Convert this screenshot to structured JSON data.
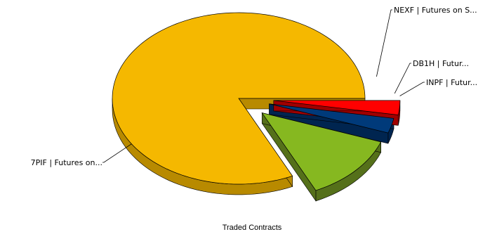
{
  "chart_data": {
    "type": "pie",
    "style": "3d-exploded",
    "title": "Traded Contracts",
    "slices": [
      {
        "label": "7PIF | Futures on...",
        "value": 82.0,
        "color": "#F5B800",
        "side_color": "#B88A00"
      },
      {
        "label": "NEXF | Futures on S...",
        "value": 12.5,
        "color": "#86B820",
        "side_color": "#55701A"
      },
      {
        "label": "DB1H | Futur...",
        "value": 2.8,
        "color": "#003A7A",
        "side_color": "#002550"
      },
      {
        "label": "INPF | Futur...",
        "value": 2.7,
        "color": "#FF0000",
        "side_color": "#A00000"
      }
    ],
    "legend": "none"
  }
}
